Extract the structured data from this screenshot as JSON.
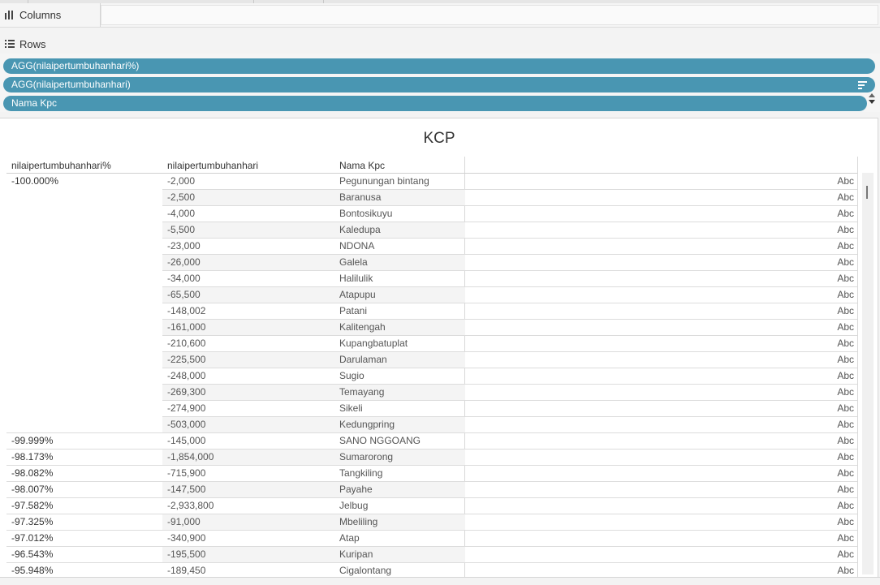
{
  "shelves": {
    "columns_label": "Columns",
    "rows_label": "Rows",
    "row_pills": [
      "AGG(nilaipertumbuhanhari%)",
      "AGG(nilaipertumbuhanhari)",
      "Nama Kpc"
    ]
  },
  "view": {
    "title": "KCP",
    "headers": {
      "pct": "nilaipertumbuhanhari%",
      "value": "nilaipertumbuhanhari",
      "kpc": "Nama Kpc"
    },
    "abc": "Abc",
    "rows": [
      {
        "pct": "-100.000%",
        "value": "-2,000",
        "kpc": "Pegunungan bintang"
      },
      {
        "pct": "",
        "value": "-2,500",
        "kpc": "Baranusa"
      },
      {
        "pct": "",
        "value": "-4,000",
        "kpc": "Bontosikuyu"
      },
      {
        "pct": "",
        "value": "-5,500",
        "kpc": "Kaledupa"
      },
      {
        "pct": "",
        "value": "-23,000",
        "kpc": "NDONA"
      },
      {
        "pct": "",
        "value": "-26,000",
        "kpc": "Galela"
      },
      {
        "pct": "",
        "value": "-34,000",
        "kpc": "Halilulik"
      },
      {
        "pct": "",
        "value": "-65,500",
        "kpc": "Atapupu"
      },
      {
        "pct": "",
        "value": "-148,002",
        "kpc": "Patani"
      },
      {
        "pct": "",
        "value": "-161,000",
        "kpc": "Kalitengah"
      },
      {
        "pct": "",
        "value": "-210,600",
        "kpc": "Kupangbatuplat"
      },
      {
        "pct": "",
        "value": "-225,500",
        "kpc": "Darulaman"
      },
      {
        "pct": "",
        "value": "-248,000",
        "kpc": "Sugio"
      },
      {
        "pct": "",
        "value": "-269,300",
        "kpc": "Temayang"
      },
      {
        "pct": "",
        "value": "-274,900",
        "kpc": "Sikeli"
      },
      {
        "pct": "",
        "value": "-503,000",
        "kpc": "Kedungpring"
      },
      {
        "pct": "-99.999%",
        "value": "-145,000",
        "kpc": "SANO NGGOANG"
      },
      {
        "pct": "-98.173%",
        "value": "-1,854,000",
        "kpc": "Sumarorong"
      },
      {
        "pct": "-98.082%",
        "value": "-715,900",
        "kpc": "Tangkiling"
      },
      {
        "pct": "-98.007%",
        "value": "-147,500",
        "kpc": "Payahe"
      },
      {
        "pct": "-97.582%",
        "value": "-2,933,800",
        "kpc": "Jelbug"
      },
      {
        "pct": "-97.325%",
        "value": "-91,000",
        "kpc": "Mbeliling"
      },
      {
        "pct": "-97.012%",
        "value": "-340,900",
        "kpc": "Atap"
      },
      {
        "pct": "-96.543%",
        "value": "-195,500",
        "kpc": "Kuripan"
      },
      {
        "pct": "-95.948%",
        "value": "-189,450",
        "kpc": "Cigalontang"
      }
    ]
  }
}
